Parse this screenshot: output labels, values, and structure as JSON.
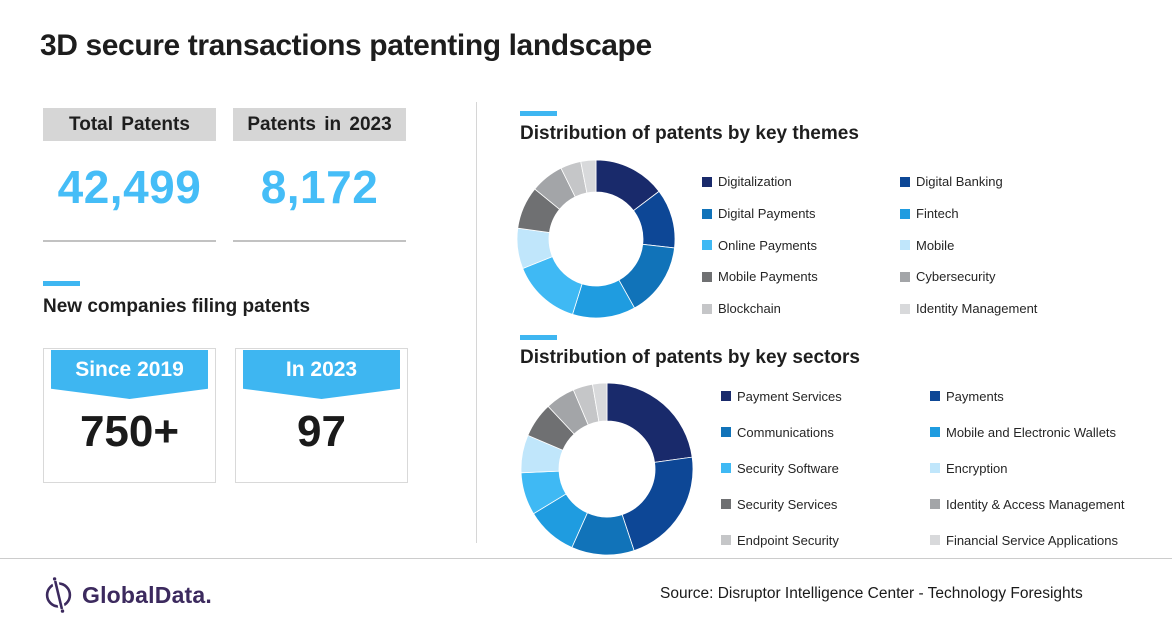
{
  "title": "3D secure transactions patenting landscape",
  "colors": {
    "accent_blue": "#3EB6F1",
    "number_blue": "#45BDF7",
    "stat_header_gray": "#D6D6D6",
    "card_border_gray": "#D9D9D9",
    "logo_purple": "#3C2A5E",
    "text_dark": "#1E1E1E"
  },
  "stats": {
    "boxes": [
      {
        "label": "Total Patents",
        "value": "42,499"
      },
      {
        "label": "Patents in 2023",
        "value": "8,172"
      }
    ]
  },
  "new_companies": {
    "heading": "New companies filing patents",
    "cards": [
      {
        "banner": "Since 2019",
        "value": "750+"
      },
      {
        "banner": "In 2023",
        "value": "97"
      }
    ]
  },
  "chart_data": [
    {
      "type": "pie",
      "subtype": "donut",
      "title": "Distribution of patents by key themes",
      "categories": [
        "Digitalization",
        "Digital Banking",
        "Digital Payments",
        "Fintech",
        "Online Payments",
        "Mobile",
        "Mobile Payments",
        "Cybersecurity",
        "Blockchain",
        "Identity Management"
      ],
      "values": [
        14.7,
        12.1,
        15.1,
        12.9,
        14.1,
        8.3,
        8.7,
        6.8,
        4.2,
        3.1
      ],
      "units": "percent share (estimated from arc angles, no labels shown)",
      "colors": [
        "#192A6B",
        "#0D4796",
        "#1173B9",
        "#1F9CE0",
        "#3FB9F4",
        "#C0E6FB",
        "#6F7072",
        "#A3A5A8",
        "#C5C6C8",
        "#D8D9DB"
      ],
      "start_angle_deg": 0,
      "direction": "clockwise",
      "legend_position": "right",
      "legend_columns": 2
    },
    {
      "type": "pie",
      "subtype": "donut",
      "title": "Distribution of patents by key sectors",
      "categories": [
        "Payment Services",
        "Payments",
        "Communications",
        "Mobile and Electronic Wallets",
        "Security Software",
        "Encryption",
        "Security Services",
        "Identity & Access Management",
        "Endpoint Security",
        "Financial Service Applications"
      ],
      "values": [
        22.8,
        22.1,
        11.8,
        9.6,
        8.0,
        7.1,
        6.6,
        5.6,
        3.7,
        2.7
      ],
      "units": "percent share (estimated from arc angles, no labels shown)",
      "colors": [
        "#192A6B",
        "#0D4796",
        "#1173B9",
        "#1F9CE0",
        "#3FB9F4",
        "#C0E6FB",
        "#6F7072",
        "#A3A5A8",
        "#C5C6C8",
        "#D8D9DB"
      ],
      "start_angle_deg": 0,
      "direction": "clockwise",
      "legend_position": "right",
      "legend_columns": 2
    }
  ],
  "footer": {
    "logo_text": "GlobalData.",
    "logo_icon": "globaldata-circle-slash-icon",
    "source": "Source: Disruptor Intelligence Center - Technology Foresights"
  }
}
